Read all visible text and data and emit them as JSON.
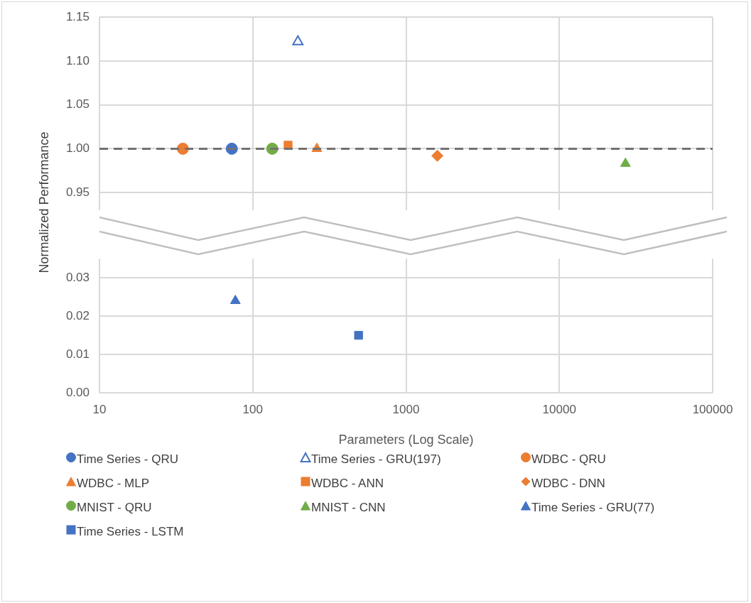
{
  "chart_data": [
    {
      "type": "scatter",
      "ylabel": "Normalized Performance",
      "xlim": [
        10,
        100000
      ],
      "xticks": [
        10,
        100,
        1000,
        10000,
        100000
      ],
      "ylim": [
        0.93,
        1.15
      ],
      "yticks": [
        0.95,
        {
          "value": 1.0,
          "label": "1.00"
        },
        1.05,
        {
          "value": 1.1,
          "label": "1.10"
        },
        1.15
      ],
      "log": "x",
      "grid": true,
      "legend": "bottom",
      "tick_labels": "y",
      "ref_lines": [
        {
          "axis": "y",
          "value": 1.0,
          "color": "#767171",
          "line_style": "dashed"
        }
      ],
      "series": [
        {
          "name": "Time Series - QRU",
          "color": "#4472c4",
          "marker": "circle",
          "x": [
            73
          ],
          "values": [
            1.0
          ]
        },
        {
          "name": "Time Series - GRU(197)",
          "color": "#4472c4",
          "marker": "triangle-open",
          "x": [
            197
          ],
          "values": [
            1.122
          ]
        },
        {
          "name": "WDBC - QRU",
          "color": "#ed7d31",
          "marker": "circle",
          "x": [
            35
          ],
          "values": [
            1.0
          ]
        },
        {
          "name": "WDBC - MLP",
          "color": "#ed7d31",
          "marker": "triangle",
          "x": [
            262
          ],
          "values": [
            1.0
          ]
        },
        {
          "name": "WDBC - ANN",
          "color": "#ed7d31",
          "marker": "square",
          "x": [
            170
          ],
          "values": [
            1.004
          ]
        },
        {
          "name": "WDBC - DNN",
          "color": "#ed7d31",
          "marker": "diamond",
          "x": [
            1600
          ],
          "values": [
            0.992
          ]
        },
        {
          "name": "MNIST - QRU",
          "color": "#70ad47",
          "marker": "circle",
          "x": [
            134
          ],
          "values": [
            1.0
          ]
        },
        {
          "name": "MNIST - CNN",
          "color": "#70ad47",
          "marker": "triangle",
          "x": [
            27000
          ],
          "values": [
            0.983
          ]
        }
      ]
    },
    {
      "type": "scatter",
      "xlabel": "Parameters (Log Scale)",
      "xlim": [
        10,
        100000
      ],
      "xticks": [
        10,
        100,
        1000,
        10000,
        100000
      ],
      "ylim": [
        0,
        0.035
      ],
      "yticks": [
        {
          "value": 0,
          "label": "0.00"
        },
        {
          "value": 0.01,
          "label": "0.01"
        },
        {
          "value": 0.02,
          "label": "0.02"
        },
        {
          "value": 0.03,
          "label": "0.03"
        }
      ],
      "log": "x",
      "grid": true,
      "legend": "bottom",
      "series": [
        {
          "name": "Time Series - GRU(77)",
          "color": "#4472c4",
          "marker": "triangle",
          "x": [
            77
          ],
          "values": [
            0.024
          ]
        },
        {
          "name": "Time Series - LSTM",
          "color": "#4472c4",
          "marker": "square",
          "x": [
            490
          ],
          "values": [
            0.015
          ]
        }
      ]
    }
  ]
}
